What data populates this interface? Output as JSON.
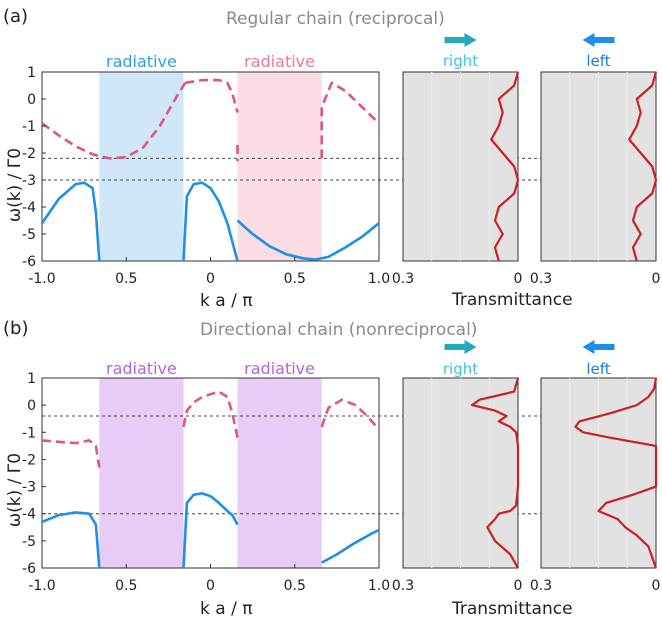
{
  "colors": {
    "lower_band": "#1e90e6",
    "upper_band": "#e05682",
    "rad_blue": "#d0e7fa",
    "rad_pink": "#fbdde3",
    "rad_purple": "#e6ccf7",
    "label_blue": "#2aa3e0",
    "label_pink": "#e8799a",
    "label_purple": "#b565db",
    "trans_panel": "#e2e2e2",
    "trans_curve": "#cc1f1f",
    "right_color": "#3cc3e6",
    "left_color": "#1a7fe0",
    "arrow_right": "#24aab8",
    "arrow_left": "#1e8fe6"
  },
  "shared": {
    "xlabel": "k a / π",
    "ylabel": "ω(k) / Γ0",
    "xticks": [
      "-1.0",
      "0.5",
      "0",
      "0.5",
      "1.0"
    ],
    "yticks": [
      "1",
      "0",
      "-1",
      "-2",
      "-3",
      "-4",
      "-5",
      "-6"
    ],
    "trans_ticks": [
      "0.3",
      "0"
    ],
    "trans_label": "Transmittance",
    "right_label": "right",
    "left_label": "left"
  },
  "chart_data": [
    {
      "type": "line",
      "panel": "(a)",
      "title": "Regular chain (reciprocal)",
      "xlabel": "k a / π",
      "ylabel": "ω(k) / Γ0",
      "xlim": [
        -1.0,
        1.0
      ],
      "ylim": [
        -6,
        1
      ],
      "regions": [
        {
          "label": "radiative",
          "x": [
            -0.66,
            -0.16
          ],
          "color": "rad_blue"
        },
        {
          "label": "radiative",
          "x": [
            0.16,
            0.66
          ],
          "color": "rad_pink"
        }
      ],
      "hlines": [
        -2.2,
        -3.0
      ],
      "series": [
        {
          "band": "upper",
          "style": "dashed",
          "segments": [
            {
              "x": [
                -1.0,
                -0.9,
                -0.8,
                -0.7,
                -0.6,
                -0.5,
                -0.4,
                -0.3,
                -0.2,
                -0.15
              ],
              "y": [
                -0.9,
                -1.35,
                -1.75,
                -2.05,
                -2.2,
                -2.15,
                -1.8,
                -1.0,
                0.1,
                0.6
              ]
            },
            {
              "x": [
                -0.15,
                -0.05,
                0.05,
                0.1,
                0.13,
                0.16
              ],
              "y": [
                0.6,
                0.7,
                0.7,
                0.6,
                0.2,
                -0.5
              ]
            },
            {
              "x": [
                0.16,
                0.16
              ],
              "y": [
                -1.7,
                -2.3
              ]
            },
            {
              "x": [
                0.66,
                0.66,
                0.72,
                0.8,
                0.9,
                1.0
              ],
              "y": [
                -2.2,
                -0.3,
                0.6,
                0.3,
                -0.3,
                -0.9
              ]
            }
          ]
        },
        {
          "band": "lower",
          "style": "solid",
          "segments": [
            {
              "x": [
                -1.0,
                -0.9,
                -0.8,
                -0.75,
                -0.7,
                -0.68,
                -0.66
              ],
              "y": [
                -4.6,
                -3.7,
                -3.15,
                -3.1,
                -3.3,
                -4.2,
                -6.0
              ]
            },
            {
              "x": [
                -0.16,
                -0.14,
                -0.1,
                -0.05,
                0.0,
                0.05,
                0.1,
                0.13,
                0.16
              ],
              "y": [
                -6.0,
                -3.6,
                -3.15,
                -3.1,
                -3.3,
                -3.8,
                -4.6,
                -5.3,
                -6.0
              ]
            },
            {
              "x": [
                0.16,
                0.25,
                0.35,
                0.45,
                0.55,
                0.62,
                0.7,
                0.8,
                0.9,
                1.0
              ],
              "y": [
                -4.5,
                -5.0,
                -5.45,
                -5.75,
                -5.9,
                -5.95,
                -5.85,
                -5.5,
                -5.1,
                -4.6
              ]
            }
          ]
        }
      ],
      "transmittance": {
        "xlim": [
          0.3,
          0
        ],
        "right": {
          "omega": [
            1.0,
            0.5,
            0.0,
            -0.5,
            -1.0,
            -1.5,
            -2.0,
            -2.5,
            -3.0,
            -3.5,
            -4.0,
            -4.5,
            -5.0,
            -5.5,
            -6.0
          ],
          "T": [
            0.0,
            0.01,
            0.05,
            0.04,
            0.05,
            0.07,
            0.04,
            0.01,
            0.0,
            0.01,
            0.05,
            0.06,
            0.04,
            0.06,
            0.05
          ]
        },
        "left": {
          "omega": [
            1.0,
            0.5,
            0.0,
            -0.5,
            -1.0,
            -1.5,
            -2.0,
            -2.5,
            -3.0,
            -3.5,
            -4.0,
            -4.5,
            -5.0,
            -5.5,
            -6.0
          ],
          "T": [
            0.0,
            0.01,
            0.05,
            0.04,
            0.05,
            0.07,
            0.04,
            0.01,
            0.0,
            0.01,
            0.05,
            0.06,
            0.04,
            0.06,
            0.05
          ]
        }
      }
    },
    {
      "type": "line",
      "panel": "(b)",
      "title": "Directional chain (nonreciprocal)",
      "xlabel": "k a / π",
      "ylabel": "ω(k) / Γ0",
      "xlim": [
        -1.0,
        1.0
      ],
      "ylim": [
        -6,
        1
      ],
      "regions": [
        {
          "label": "radiative",
          "x": [
            -0.66,
            -0.16
          ],
          "color": "rad_purple"
        },
        {
          "label": "radiative",
          "x": [
            0.16,
            0.66
          ],
          "color": "rad_purple"
        }
      ],
      "hlines": [
        -0.4,
        -4.0
      ],
      "series": [
        {
          "band": "upper",
          "style": "dashed",
          "segments": [
            {
              "x": [
                -1.0,
                -0.9,
                -0.8,
                -0.72,
                -0.68,
                -0.66
              ],
              "y": [
                -1.3,
                -1.35,
                -1.4,
                -1.3,
                -1.5,
                -2.3
              ]
            },
            {
              "x": [
                -0.16,
                -0.14,
                -0.1,
                -0.05,
                0.0,
                0.05,
                0.1,
                0.13,
                0.16
              ],
              "y": [
                -0.8,
                -0.2,
                0.1,
                0.3,
                0.4,
                0.5,
                0.3,
                -0.3,
                -1.2
              ]
            },
            {
              "x": [
                0.66,
                0.7,
                0.78,
                0.86,
                0.93,
                1.0
              ],
              "y": [
                -0.8,
                -0.1,
                0.2,
                0.0,
                -0.4,
                -0.9
              ]
            }
          ]
        },
        {
          "band": "lower",
          "style": "solid",
          "segments": [
            {
              "x": [
                -1.0,
                -0.9,
                -0.8,
                -0.72,
                -0.68,
                -0.66
              ],
              "y": [
                -4.3,
                -4.05,
                -3.95,
                -4.0,
                -4.4,
                -6.0
              ]
            },
            {
              "x": [
                -0.16,
                -0.14,
                -0.1,
                -0.05,
                0.0,
                0.05,
                0.1,
                0.13,
                0.16
              ],
              "y": [
                -6.0,
                -3.6,
                -3.3,
                -3.25,
                -3.35,
                -3.6,
                -3.9,
                -4.05,
                -4.4
              ]
            },
            {
              "x": [
                0.66,
                0.75,
                0.85,
                0.95,
                1.0
              ],
              "y": [
                -5.8,
                -5.5,
                -5.1,
                -4.75,
                -4.6
              ]
            }
          ]
        }
      ],
      "transmittance": {
        "xlim": [
          0.3,
          0
        ],
        "right": {
          "omega": [
            1.0,
            0.5,
            0.2,
            0.0,
            -0.2,
            -0.4,
            -0.6,
            -0.8,
            -1.0,
            -1.5,
            -2.0,
            -3.0,
            -3.7,
            -3.9,
            -4.0,
            -4.2,
            -4.5,
            -5.0,
            -5.5,
            -6.0
          ],
          "T": [
            0.0,
            0.01,
            0.1,
            0.12,
            0.06,
            0.03,
            0.05,
            0.02,
            0.005,
            0.0,
            0.0,
            0.0,
            0.005,
            0.02,
            0.05,
            0.06,
            0.08,
            0.06,
            0.02,
            0.0
          ]
        },
        "left": {
          "omega": [
            1.0,
            0.6,
            0.3,
            0.0,
            -0.3,
            -0.6,
            -0.8,
            -1.0,
            -1.2,
            -1.5,
            -2.0,
            -3.0,
            -3.3,
            -3.6,
            -3.9,
            -4.2,
            -4.5,
            -4.8,
            -5.2,
            -6.0
          ],
          "T": [
            0.0,
            0.005,
            0.02,
            0.05,
            0.12,
            0.2,
            0.21,
            0.19,
            0.12,
            0.0,
            0.0,
            0.0,
            0.06,
            0.13,
            0.15,
            0.1,
            0.08,
            0.05,
            0.02,
            0.0
          ]
        }
      }
    }
  ]
}
